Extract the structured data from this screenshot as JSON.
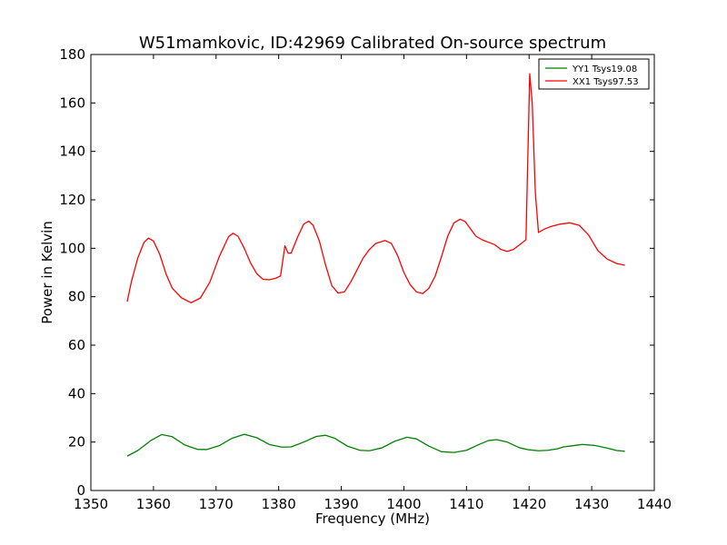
{
  "chart_data": {
    "type": "line",
    "title": "W51mamkovic, ID:42969 Calibrated On-source spectrum",
    "xlabel": "Frequency (MHz)",
    "ylabel": "Power in Kelvin",
    "xlim": [
      1350,
      1440
    ],
    "ylim": [
      0,
      180
    ],
    "xticks": [
      "1350",
      "1360",
      "1370",
      "1380",
      "1390",
      "1400",
      "1410",
      "1420",
      "1430",
      "1440"
    ],
    "yticks": [
      "0",
      "20",
      "40",
      "60",
      "80",
      "100",
      "120",
      "140",
      "160",
      "180"
    ],
    "grid": false,
    "legend_position": "top-right",
    "series": [
      {
        "name": "YY1 Tsys19.08",
        "color": "#008000",
        "x": [
          1355.8,
          1357.5,
          1359.5,
          1361.3,
          1363.0,
          1365.0,
          1367.0,
          1368.5,
          1370.5,
          1372.5,
          1374.5,
          1376.5,
          1378.5,
          1380.5,
          1382.0,
          1384.0,
          1386.0,
          1387.5,
          1389.0,
          1391.0,
          1393.0,
          1394.5,
          1396.5,
          1398.5,
          1400.5,
          1402.0,
          1404.0,
          1406.0,
          1408.0,
          1410.0,
          1412.0,
          1413.5,
          1414.8,
          1416.5,
          1418.5,
          1420.0,
          1421.5,
          1423.0,
          1424.5,
          1425.5,
          1427.0,
          1428.5,
          1430.5,
          1432.5,
          1434.0,
          1435.3
        ],
        "y": [
          14.2,
          16.5,
          20.5,
          23.1,
          22.2,
          18.8,
          17.0,
          16.9,
          18.5,
          21.5,
          23.2,
          21.8,
          19.0,
          17.9,
          18.0,
          20.0,
          22.3,
          22.8,
          21.5,
          18.3,
          16.6,
          16.4,
          17.6,
          20.3,
          22.0,
          21.3,
          18.3,
          16.0,
          15.7,
          16.6,
          19.0,
          20.6,
          21.0,
          20.0,
          17.6,
          16.8,
          16.4,
          16.6,
          17.2,
          18.0,
          18.5,
          19.0,
          18.6,
          17.5,
          16.5,
          16.2
        ]
      },
      {
        "name": "XX1 Tsys97.53",
        "color": "#ff0000",
        "x": [
          1355.8,
          1356.5,
          1357.5,
          1358.5,
          1359.2,
          1360.0,
          1361.0,
          1362.0,
          1363.0,
          1364.5,
          1366.0,
          1367.5,
          1369.0,
          1370.5,
          1372.0,
          1372.7,
          1373.5,
          1374.5,
          1375.5,
          1376.5,
          1377.5,
          1378.5,
          1379.5,
          1380.3,
          1381.0,
          1381.5,
          1382.0,
          1383.0,
          1384.0,
          1384.8,
          1385.5,
          1386.5,
          1387.5,
          1388.5,
          1389.5,
          1390.5,
          1391.5,
          1392.5,
          1393.5,
          1394.5,
          1395.5,
          1397.0,
          1398.0,
          1399.0,
          1400.0,
          1401.0,
          1402.0,
          1403.0,
          1404.0,
          1405.0,
          1406.0,
          1407.0,
          1408.0,
          1409.0,
          1409.8,
          1410.5,
          1411.5,
          1412.5,
          1413.5,
          1414.5,
          1415.5,
          1416.5,
          1417.5,
          1418.5,
          1419.5,
          1420.1,
          1420.5,
          1421.0,
          1421.5,
          1422.5,
          1423.5,
          1425.0,
          1426.5,
          1428.0,
          1429.5,
          1431.0,
          1432.5,
          1434.0,
          1435.3
        ],
        "y": [
          78.0,
          86.5,
          96.0,
          102.5,
          104.2,
          103.0,
          97.5,
          89.5,
          83.5,
          79.5,
          77.5,
          79.5,
          86.0,
          96.5,
          104.8,
          106.2,
          105.0,
          100.0,
          94.0,
          89.5,
          87.2,
          87.0,
          87.6,
          88.6,
          101.0,
          98.0,
          98.0,
          104.5,
          110.0,
          111.2,
          109.5,
          103.0,
          93.0,
          84.5,
          81.5,
          82.0,
          86.0,
          91.0,
          96.0,
          99.5,
          102.0,
          103.2,
          102.0,
          97.0,
          90.0,
          85.0,
          82.0,
          81.3,
          83.5,
          88.5,
          96.5,
          105.0,
          110.5,
          112.0,
          111.0,
          108.5,
          105.0,
          103.5,
          102.5,
          101.5,
          99.5,
          98.7,
          99.5,
          101.5,
          103.5,
          172.0,
          160.0,
          123.0,
          106.5,
          108.0,
          109.0,
          110.0,
          110.5,
          109.5,
          105.5,
          99.0,
          95.5,
          93.7,
          93.0
        ]
      }
    ]
  }
}
